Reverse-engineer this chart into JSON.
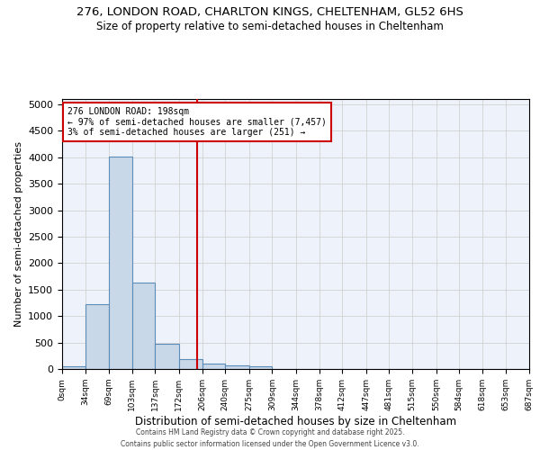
{
  "title_line1": "276, LONDON ROAD, CHARLTON KINGS, CHELTENHAM, GL52 6HS",
  "title_line2": "Size of property relative to semi-detached houses in Cheltenham",
  "xlabel": "Distribution of semi-detached houses by size in Cheltenham",
  "ylabel": "Number of semi-detached properties",
  "bar_color": "#c8d8e8",
  "bar_edge_color": "#5b8db8",
  "bin_edges": [
    0,
    34,
    69,
    103,
    137,
    172,
    206,
    240,
    275,
    309,
    344,
    378,
    412,
    447,
    481,
    515,
    550,
    584,
    618,
    653,
    687
  ],
  "bin_labels": [
    "0sqm",
    "34sqm",
    "69sqm",
    "103sqm",
    "137sqm",
    "172sqm",
    "206sqm",
    "240sqm",
    "275sqm",
    "309sqm",
    "344sqm",
    "378sqm",
    "412sqm",
    "447sqm",
    "481sqm",
    "515sqm",
    "550sqm",
    "584sqm",
    "618sqm",
    "653sqm",
    "687sqm"
  ],
  "bar_heights": [
    50,
    1230,
    4020,
    1630,
    480,
    185,
    100,
    65,
    55,
    0,
    0,
    0,
    0,
    0,
    0,
    0,
    0,
    0,
    0,
    0
  ],
  "ylim": [
    0,
    5100
  ],
  "yticks": [
    0,
    500,
    1000,
    1500,
    2000,
    2500,
    3000,
    3500,
    4000,
    4500,
    5000
  ],
  "property_line_x": 198,
  "property_line_color": "#cc0000",
  "annotation_title": "276 LONDON ROAD: 198sqm",
  "annotation_line1": "← 97% of semi-detached houses are smaller (7,457)",
  "annotation_line2": "3% of semi-detached houses are larger (251) →",
  "annotation_box_color": "#cc0000",
  "annotation_text_color": "#000000",
  "annotation_bg_color": "#ffffff",
  "footer_line1": "Contains HM Land Registry data © Crown copyright and database right 2025.",
  "footer_line2": "Contains public sector information licensed under the Open Government Licence v3.0.",
  "bg_color": "#eef2fa",
  "grid_color": "#cccccc"
}
